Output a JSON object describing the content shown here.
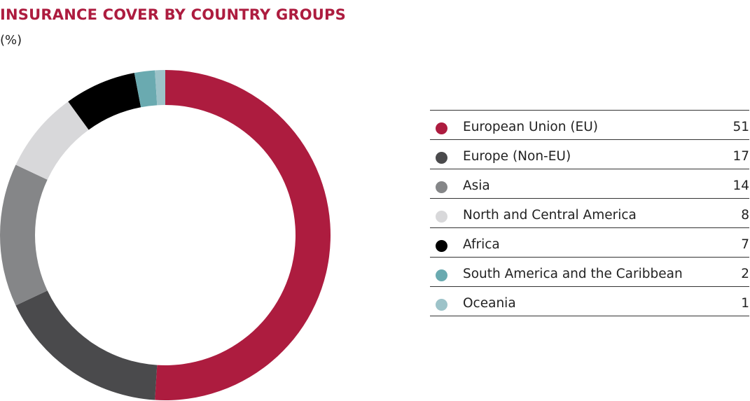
{
  "chart_data": {
    "type": "pie",
    "variant": "donut",
    "title": "INSURANCE COVER BY COUNTRY GROUPS",
    "subtitle": "(%)",
    "legend_position": "right",
    "categories": [
      "European Union (EU)",
      "Europe (Non-EU)",
      "Asia",
      "North and Central America",
      "Africa",
      "South America and the Caribbean",
      "Oceania"
    ],
    "values": [
      51,
      17,
      14,
      8,
      7,
      2,
      1
    ],
    "value_labels": [
      "51",
      "17",
      "14",
      "8",
      "7",
      "2",
      "1"
    ],
    "colors": [
      "#ad1c3f",
      "#4a4a4c",
      "#858688",
      "#d8d8da",
      "#000000",
      "#6aaab0",
      "#9dc3c9"
    ]
  }
}
